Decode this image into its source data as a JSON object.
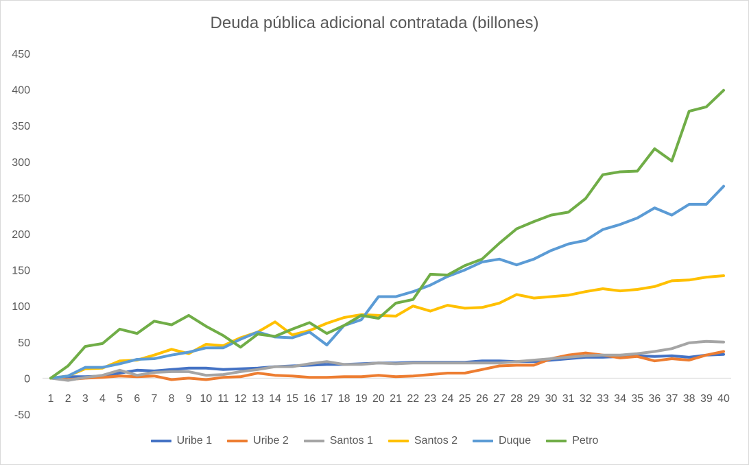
{
  "chart_data": {
    "type": "line",
    "title": "Deuda pública adicional contratada (billones)",
    "xlabel": "",
    "ylabel": "",
    "ylim": [
      -50,
      450
    ],
    "yticks": [
      -50,
      0,
      50,
      100,
      150,
      200,
      250,
      300,
      350,
      400,
      450
    ],
    "categories": [
      "1",
      "2",
      "3",
      "4",
      "5",
      "6",
      "7",
      "8",
      "9",
      "10",
      "11",
      "12",
      "13",
      "14",
      "15",
      "16",
      "17",
      "18",
      "19",
      "20",
      "21",
      "22",
      "23",
      "24",
      "25",
      "26",
      "27",
      "28",
      "29",
      "30",
      "31",
      "32",
      "33",
      "34",
      "35",
      "36",
      "37",
      "38",
      "39",
      "40"
    ],
    "legend_position": "bottom",
    "grid": false,
    "series": [
      {
        "name": "Uribe 1",
        "color": "#4472C4",
        "values": [
          0,
          2,
          2,
          3,
          7,
          11,
          10,
          12,
          14,
          14,
          12,
          13,
          14,
          16,
          17,
          18,
          19,
          19,
          20,
          21,
          21,
          22,
          22,
          22,
          22,
          24,
          24,
          23,
          23,
          25,
          27,
          29,
          29,
          30,
          31,
          30,
          31,
          29,
          32,
          33
        ]
      },
      {
        "name": "Uribe 2",
        "color": "#ED7D31",
        "values": [
          0,
          -2,
          0,
          1,
          3,
          2,
          3,
          -2,
          0,
          -2,
          1,
          2,
          7,
          4,
          3,
          1,
          1,
          2,
          2,
          4,
          2,
          3,
          5,
          7,
          7,
          12,
          17,
          18,
          18,
          27,
          32,
          35,
          32,
          28,
          30,
          24,
          27,
          25,
          32,
          37
        ]
      },
      {
        "name": "Santos 1",
        "color": "#A5A5A5",
        "values": [
          0,
          -3,
          1,
          4,
          11,
          4,
          8,
          9,
          9,
          4,
          5,
          9,
          12,
          16,
          16,
          20,
          23,
          19,
          19,
          21,
          20,
          21,
          21,
          21,
          21,
          21,
          21,
          23,
          25,
          27,
          29,
          31,
          32,
          32,
          34,
          37,
          41,
          49,
          51,
          50
        ]
      },
      {
        "name": "Santos 2",
        "color": "#FFC000",
        "values": [
          0,
          3,
          13,
          14,
          24,
          25,
          32,
          40,
          34,
          47,
          45,
          56,
          64,
          78,
          60,
          66,
          76,
          84,
          88,
          87,
          86,
          100,
          93,
          101,
          97,
          98,
          104,
          116,
          111,
          113,
          115,
          120,
          124,
          121,
          123,
          127,
          135,
          136,
          140,
          142
        ]
      },
      {
        "name": "Duque",
        "color": "#5B9BD5",
        "values": [
          0,
          3,
          15,
          15,
          20,
          26,
          27,
          32,
          36,
          42,
          42,
          54,
          64,
          57,
          56,
          64,
          46,
          73,
          81,
          113,
          113,
          120,
          129,
          141,
          150,
          161,
          165,
          157,
          165,
          177,
          186,
          191,
          206,
          213,
          222,
          236,
          226,
          241,
          241,
          266
        ]
      },
      {
        "name": "Petro",
        "color": "#70AD47",
        "values": [
          0,
          17,
          44,
          48,
          68,
          62,
          79,
          74,
          87,
          72,
          59,
          43,
          61,
          58,
          68,
          77,
          62,
          73,
          87,
          83,
          104,
          109,
          144,
          143,
          156,
          165,
          187,
          207,
          217,
          226,
          230,
          249,
          282,
          286,
          287,
          318,
          301,
          370,
          376,
          399
        ]
      }
    ]
  }
}
